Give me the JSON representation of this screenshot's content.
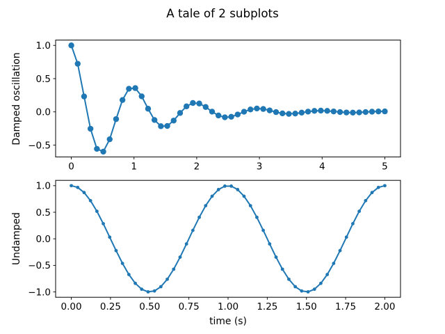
{
  "figure": {
    "title": "A tale of 2 subplots",
    "background": "#ffffff",
    "accent_color": "#1f77b4"
  },
  "chart_data": [
    {
      "type": "line",
      "title": "",
      "xlabel": "",
      "ylabel": "Damped oscillation",
      "legend": null,
      "grid": false,
      "marker": "o",
      "line_color": "#1f77b4",
      "xlim": [
        -0.25,
        5.25
      ],
      "ylim": [
        -0.6791,
        1.08
      ],
      "xticks": {
        "values": [
          0,
          1,
          2,
          3,
          4,
          5
        ],
        "labels": [
          "0",
          "1",
          "2",
          "3",
          "4",
          "5"
        ]
      },
      "yticks": {
        "values": [
          -0.5,
          0.0,
          0.5,
          1.0
        ],
        "labels": [
          "−0.5",
          "0.0",
          "0.5",
          "1.0"
        ]
      },
      "x": [
        0.0,
        0.102,
        0.2041,
        0.3061,
        0.4082,
        0.5102,
        0.6122,
        0.7143,
        0.8163,
        0.9184,
        1.0204,
        1.1224,
        1.2245,
        1.3265,
        1.4286,
        1.5306,
        1.6327,
        1.7347,
        1.8367,
        1.9388,
        2.0408,
        2.1429,
        2.2449,
        2.3469,
        2.449,
        2.551,
        2.6531,
        2.7551,
        2.8571,
        2.9592,
        3.0612,
        3.1633,
        3.2653,
        3.3673,
        3.4694,
        3.5714,
        3.6735,
        3.7755,
        3.8776,
        3.9796,
        4.0816,
        4.1837,
        4.2857,
        4.3878,
        4.4898,
        4.5918,
        4.6939,
        4.7959,
        4.898,
        5.0
      ],
      "y": [
        1.0,
        0.7235,
        0.2319,
        -0.2542,
        -0.557,
        -0.5991,
        -0.4128,
        -0.1089,
        0.1788,
        0.3477,
        0.3575,
        0.2337,
        0.0469,
        -0.1227,
        -0.2159,
        -0.2124,
        -0.1313,
        -0.0169,
        0.0826,
        0.1333,
        0.1257,
        0.0731,
        0.0034,
        -0.0547,
        -0.082,
        -0.074,
        -0.0403,
        0.002,
        0.0358,
        0.0502,
        0.0434,
        0.0219,
        -0.0037,
        -0.0232,
        -0.0306,
        -0.0253,
        -0.0117,
        0.0037,
        0.0149,
        0.0185,
        0.0147,
        0.0062,
        -0.0031,
        -0.0095,
        -0.0112,
        -0.0085,
        -0.0032,
        0.0024,
        0.006,
        0.0067
      ]
    },
    {
      "type": "line",
      "title": "",
      "xlabel": "time (s)",
      "ylabel": "Undamped",
      "legend": null,
      "grid": false,
      "marker": ".",
      "line_color": "#1f77b4",
      "xlim": [
        -0.1,
        2.1
      ],
      "ylim": [
        -1.1,
        1.1
      ],
      "xticks": {
        "values": [
          0.0,
          0.25,
          0.5,
          0.75,
          1.0,
          1.25,
          1.5,
          1.75,
          2.0
        ],
        "labels": [
          "0.00",
          "0.25",
          "0.50",
          "0.75",
          "1.00",
          "1.25",
          "1.50",
          "1.75",
          "2.00"
        ]
      },
      "yticks": {
        "values": [
          -1.0,
          -0.5,
          0.0,
          0.5,
          1.0
        ],
        "labels": [
          "−1.0",
          "−0.5",
          "0.0",
          "0.5",
          "1.0"
        ]
      },
      "x": [
        0.0,
        0.0408,
        0.0816,
        0.1224,
        0.1633,
        0.2041,
        0.2449,
        0.2857,
        0.3265,
        0.3673,
        0.4082,
        0.449,
        0.4898,
        0.5306,
        0.5714,
        0.6122,
        0.6531,
        0.6939,
        0.7347,
        0.7755,
        0.8163,
        0.8571,
        0.898,
        0.9388,
        0.9796,
        1.0204,
        1.0612,
        1.102,
        1.1429,
        1.1837,
        1.2245,
        1.2653,
        1.3061,
        1.3469,
        1.3878,
        1.4286,
        1.4694,
        1.5102,
        1.551,
        1.5918,
        1.6327,
        1.6735,
        1.7143,
        1.7551,
        1.7959,
        1.8367,
        1.8776,
        1.9184,
        1.9592,
        2.0
      ],
      "y": [
        1.0,
        0.9672,
        0.8711,
        0.7181,
        0.5182,
        0.2844,
        0.032,
        -0.2225,
        -0.4624,
        -0.6721,
        -0.8378,
        -0.9488,
        -0.9979,
        -0.9816,
        -0.9009,
        -0.7614,
        -0.572,
        -0.3453,
        -0.096,
        0.1596,
        0.4044,
        0.6235,
        0.8013,
        0.9267,
        0.9918,
        0.9918,
        0.9267,
        0.8013,
        0.6235,
        0.4044,
        0.1596,
        -0.096,
        -0.3453,
        -0.572,
        -0.7614,
        -0.9009,
        -0.9816,
        -0.9979,
        -0.9488,
        -0.8378,
        -0.6721,
        -0.4624,
        -0.2225,
        0.032,
        0.2844,
        0.5182,
        0.7181,
        0.8711,
        0.9672,
        1.0
      ]
    }
  ]
}
